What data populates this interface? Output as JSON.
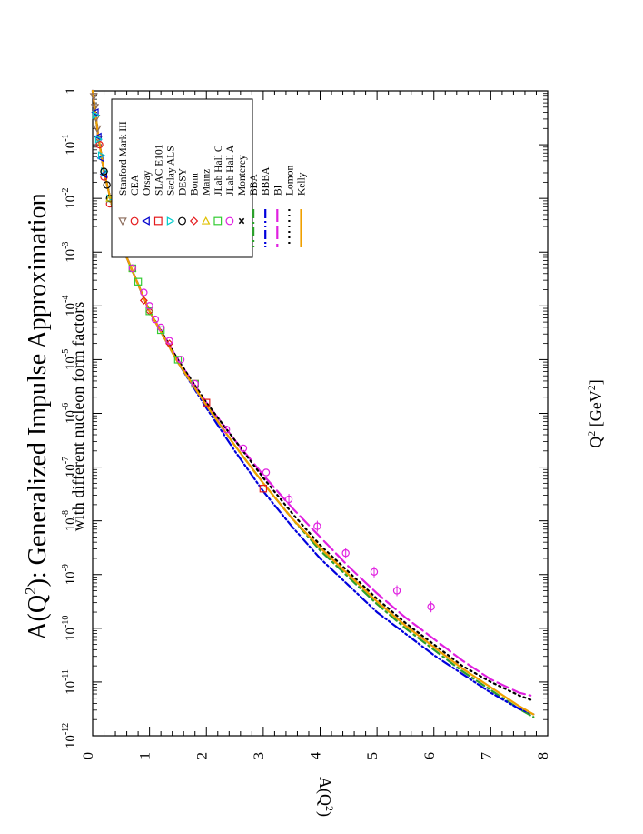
{
  "chart_data": {
    "type": "line",
    "orientation": "rotated-90-clockwise",
    "title_main": "A(Q",
    "title_sup": "2",
    "title_rest": "): Generalized Impulse Approximation",
    "subtitle": "with different nucleon form factors",
    "xlabel_main": "Q",
    "xlabel_sup": "2",
    "xlabel_unit": " [GeV",
    "xlabel_unit_sup": "2",
    "xlabel_close": "]",
    "ylabel_main": "A(Q",
    "ylabel_sup": "2",
    "ylabel_close": ")",
    "x_range": [
      0,
      8
    ],
    "x_ticks": [
      "0",
      "1",
      "2",
      "3",
      "4",
      "5",
      "6",
      "7",
      "8"
    ],
    "y_scale": "log",
    "y_range_exp": [
      -12,
      0
    ],
    "y_ticks": [
      {
        "base": "1",
        "exp": ""
      },
      {
        "base": "10",
        "exp": "-1"
      },
      {
        "base": "10",
        "exp": "-2"
      },
      {
        "base": "10",
        "exp": "-3"
      },
      {
        "base": "10",
        "exp": "-4"
      },
      {
        "base": "10",
        "exp": "-5"
      },
      {
        "base": "10",
        "exp": "-6"
      },
      {
        "base": "10",
        "exp": "-7"
      },
      {
        "base": "10",
        "exp": "-8"
      },
      {
        "base": "10",
        "exp": "-9"
      },
      {
        "base": "10",
        "exp": "-10"
      },
      {
        "base": "10",
        "exp": "-11"
      },
      {
        "base": "10",
        "exp": "-12"
      }
    ],
    "legend_position": "top-right",
    "markers": [
      {
        "name": "Stanford Mark III",
        "shape": "triangle-down",
        "color": "#8B6B5A",
        "points": [
          [
            0.02,
            -0.1
          ],
          [
            0.04,
            -0.3
          ],
          [
            0.06,
            -0.5
          ],
          [
            0.08,
            -0.7
          ],
          [
            0.1,
            -0.9
          ]
        ]
      },
      {
        "name": "CEA",
        "shape": "circle",
        "color": "#E41A1C",
        "points": [
          [
            0.12,
            -1.0
          ],
          [
            0.2,
            -1.6
          ],
          [
            0.3,
            -2.1
          ],
          [
            0.4,
            -2.5
          ],
          [
            0.5,
            -2.8
          ]
        ]
      },
      {
        "name": "Orsay",
        "shape": "triangle-left",
        "color": "#0000CC",
        "points": [
          [
            0.05,
            -0.4
          ],
          [
            0.1,
            -0.85
          ],
          [
            0.15,
            -1.25
          ],
          [
            0.2,
            -1.55
          ]
        ]
      },
      {
        "name": "SLAC E101",
        "shape": "square",
        "color": "#E41A1C",
        "points": [
          [
            1.8,
            -5.45
          ],
          [
            2.0,
            -5.8
          ],
          [
            3.0,
            -7.4
          ]
        ]
      },
      {
        "name": "Saclay ALS",
        "shape": "triangle-right",
        "color": "#00CCCC",
        "points": [
          [
            0.05,
            -0.45
          ],
          [
            0.1,
            -0.9
          ],
          [
            0.15,
            -1.2
          ],
          [
            0.2,
            -1.5
          ],
          [
            0.3,
            -2.0
          ],
          [
            0.4,
            -2.4
          ],
          [
            0.5,
            -2.7
          ],
          [
            0.6,
            -3.0
          ]
        ]
      },
      {
        "name": "DESY",
        "shape": "circle",
        "color": "#000000",
        "points": [
          [
            0.2,
            -1.5
          ],
          [
            0.25,
            -1.75
          ],
          [
            0.3,
            -2.0
          ],
          [
            0.4,
            -2.5
          ],
          [
            0.45,
            -2.7
          ],
          [
            0.5,
            -2.85
          ]
        ]
      },
      {
        "name": "Bonn",
        "shape": "diamond",
        "color": "#E41A1C",
        "points": [
          [
            0.9,
            -3.9
          ],
          [
            1.0,
            -4.1
          ],
          [
            1.35,
            -4.7
          ]
        ]
      },
      {
        "name": "Mainz",
        "shape": "triangle-up",
        "color": "#E0C000",
        "points": [
          [
            0.3,
            -2.0
          ],
          [
            0.4,
            -2.4
          ],
          [
            0.5,
            -2.75
          ],
          [
            0.6,
            -3.0
          ],
          [
            0.7,
            -3.3
          ]
        ]
      },
      {
        "name": "JLab Hall C",
        "shape": "square",
        "color": "#33CC33",
        "points": [
          [
            0.7,
            -3.3
          ],
          [
            0.8,
            -3.55
          ],
          [
            1.0,
            -4.1
          ],
          [
            1.2,
            -4.45
          ],
          [
            1.5,
            -5.0
          ],
          [
            1.8,
            -5.45
          ]
        ]
      },
      {
        "name": "JLab Hall A",
        "shape": "circle",
        "color": "#E020E0",
        "points": [
          [
            0.7,
            -3.3
          ],
          [
            0.9,
            -3.75
          ],
          [
            1.0,
            -4.0
          ],
          [
            1.1,
            -4.25
          ],
          [
            1.2,
            -4.4
          ],
          [
            1.35,
            -4.65
          ],
          [
            1.55,
            -5.0
          ],
          [
            1.8,
            -5.45
          ],
          [
            2.35,
            -6.3
          ],
          [
            2.65,
            -6.65
          ],
          [
            3.05,
            -7.1
          ],
          [
            3.45,
            -7.6
          ],
          [
            3.95,
            -8.1
          ],
          [
            4.45,
            -8.6
          ],
          [
            4.95,
            -8.95
          ],
          [
            5.35,
            -9.3
          ],
          [
            5.95,
            -9.6
          ]
        ]
      },
      {
        "name": "Monterey",
        "shape": "x",
        "color": "#000000",
        "points": []
      }
    ],
    "lines": [
      {
        "name": "BBA",
        "dash": "dashdot",
        "color": "#2CA02C",
        "x": [
          0,
          0.1,
          0.2,
          0.4,
          0.6,
          0.8,
          1.0,
          1.5,
          2.0,
          2.5,
          3.0,
          3.5,
          4.0,
          4.5,
          5.0,
          5.5,
          6.0,
          6.5,
          7.0,
          7.5,
          7.75
        ],
        "y": [
          0,
          -0.85,
          -1.5,
          -2.4,
          -3.1,
          -3.6,
          -4.1,
          -5.05,
          -5.85,
          -6.6,
          -7.3,
          -7.95,
          -8.55,
          -9.05,
          -9.55,
          -10.0,
          -10.4,
          -10.8,
          -11.15,
          -11.5,
          -11.65
        ]
      },
      {
        "name": "BBBA",
        "dash": "dashdotdot",
        "color": "#0000DD",
        "x": [
          0,
          0.1,
          0.2,
          0.4,
          0.6,
          0.8,
          1.0,
          1.5,
          2.0,
          2.5,
          3.0,
          3.5,
          4.0,
          4.5,
          5.0,
          5.5,
          6.0,
          6.5,
          7.0,
          7.5,
          7.75
        ],
        "y": [
          0,
          -0.85,
          -1.5,
          -2.4,
          -3.1,
          -3.6,
          -4.1,
          -5.05,
          -5.9,
          -6.7,
          -7.45,
          -8.1,
          -8.7,
          -9.2,
          -9.7,
          -10.1,
          -10.5,
          -10.85,
          -11.2,
          -11.5,
          -11.6
        ]
      },
      {
        "name": "BI",
        "dash": "longdash",
        "color": "#E020E0",
        "x": [
          0,
          0.1,
          0.2,
          0.4,
          0.6,
          0.8,
          1.0,
          1.5,
          2.0,
          2.5,
          3.0,
          3.5,
          4.0,
          4.5,
          5.0,
          5.5,
          6.0,
          6.5,
          7.0,
          7.5,
          7.7
        ],
        "y": [
          0,
          -0.85,
          -1.5,
          -2.4,
          -3.1,
          -3.6,
          -4.1,
          -5.0,
          -5.8,
          -6.5,
          -7.15,
          -7.75,
          -8.3,
          -8.85,
          -9.35,
          -9.8,
          -10.2,
          -10.6,
          -10.95,
          -11.2,
          -11.25
        ]
      },
      {
        "name": "Lomon",
        "dash": "dotted",
        "color": "#000000",
        "x": [
          0,
          0.1,
          0.2,
          0.4,
          0.6,
          0.8,
          1.0,
          1.5,
          2.0,
          2.5,
          3.0,
          3.5,
          4.0,
          4.5,
          5.0,
          5.5,
          6.0,
          6.5,
          7.0,
          7.5,
          7.75
        ],
        "y": [
          0,
          -0.85,
          -1.5,
          -2.4,
          -3.1,
          -3.6,
          -4.1,
          -5.0,
          -5.8,
          -6.5,
          -7.2,
          -7.85,
          -8.45,
          -8.95,
          -9.45,
          -9.9,
          -10.3,
          -10.7,
          -11.0,
          -11.25,
          -11.35
        ]
      },
      {
        "name": "Kelly",
        "dash": "solid",
        "color": "#F0A000",
        "x": [
          0,
          0.1,
          0.2,
          0.4,
          0.6,
          0.8,
          1.0,
          1.5,
          2.0,
          2.5,
          3.0,
          3.5,
          4.0,
          4.5,
          5.0,
          5.5,
          6.0,
          6.5,
          7.0,
          7.5,
          7.75
        ],
        "y": [
          0,
          -0.85,
          -1.5,
          -2.4,
          -3.1,
          -3.6,
          -4.1,
          -5.05,
          -5.85,
          -6.6,
          -7.3,
          -7.95,
          -8.5,
          -9.0,
          -9.5,
          -9.95,
          -10.35,
          -10.75,
          -11.1,
          -11.45,
          -11.6
        ]
      }
    ]
  }
}
